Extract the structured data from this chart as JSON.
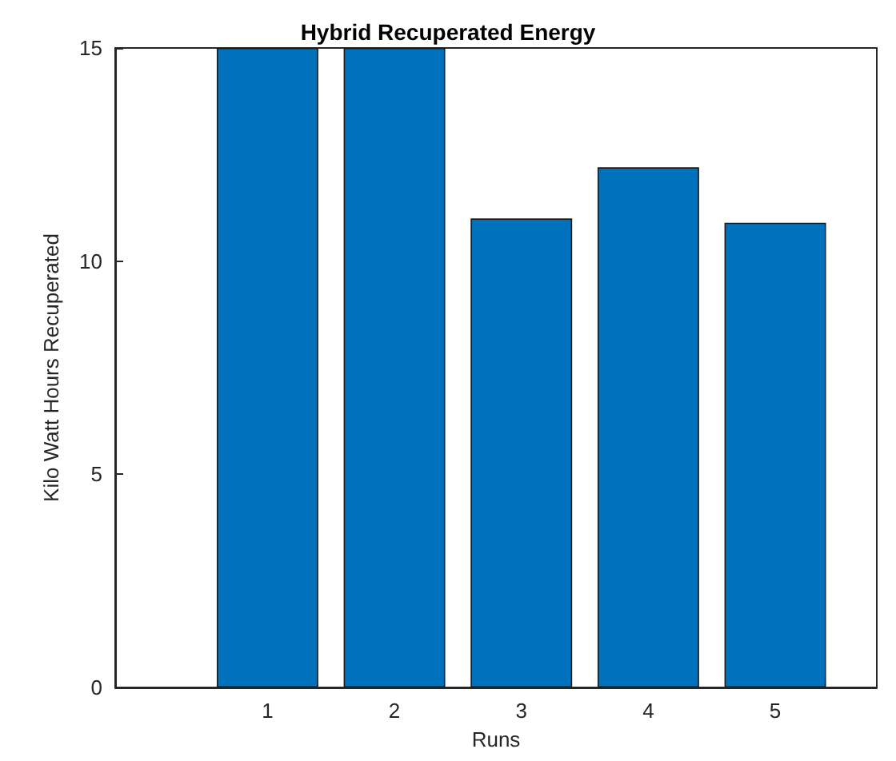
{
  "chart_data": {
    "type": "bar",
    "title": "Hybrid Recuperated Energy",
    "xlabel": "Runs",
    "ylabel": "Kilo Watt Hours Recuperated",
    "x": [
      1,
      2,
      3,
      4,
      5
    ],
    "values": [
      15,
      15,
      11,
      12.2,
      10.9
    ],
    "color": "#0072bd",
    "xlim": [
      -0.2,
      5.8
    ],
    "xticks": [
      1,
      2,
      3,
      4,
      5
    ],
    "ylim": [
      0,
      15
    ],
    "yticks": [
      0,
      5,
      10,
      15
    ],
    "grid": false
  }
}
